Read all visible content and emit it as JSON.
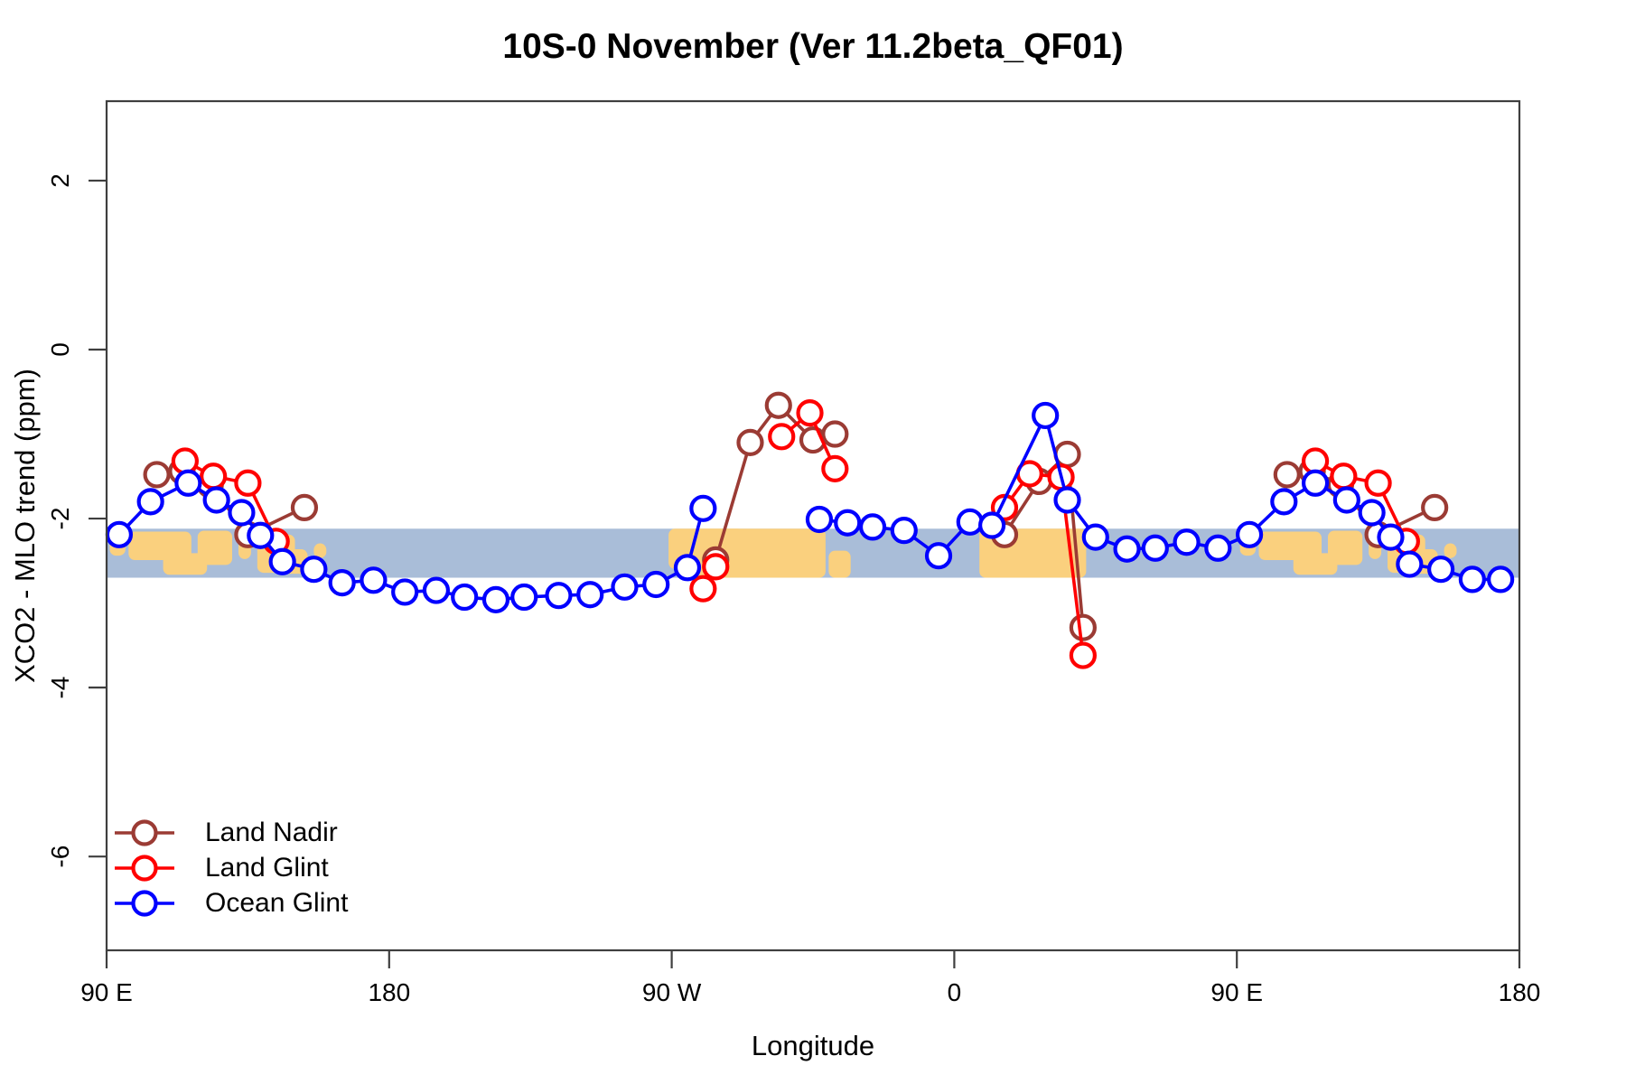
{
  "title": "10S-0 November (Ver 11.2beta_QF01)",
  "axes": {
    "x_label": "Longitude",
    "y_label": "XCO2 - MLO trend (ppm)"
  },
  "legend": [
    {
      "label": "Land Nadir",
      "color": "#9b3b34"
    },
    {
      "label": "Land Glint",
      "color": "#ff0000"
    },
    {
      "label": "Ocean Glint",
      "color": "#0000ff"
    }
  ],
  "chart_data": {
    "type": "line",
    "title": "10S-0 November (Ver 11.2beta_QF01)",
    "xlabel": "Longitude",
    "ylabel": "XCO2 - MLO trend (ppm)",
    "x_axis_note": "x is degrees east of 90E along a wrapped longitude axis spanning 450 degrees",
    "x_range_deg": [
      0,
      450
    ],
    "x_ticks": [
      {
        "deg": 0,
        "label": "90 E"
      },
      {
        "deg": 90,
        "label": "180"
      },
      {
        "deg": 180,
        "label": "90 W"
      },
      {
        "deg": 270,
        "label": "0"
      },
      {
        "deg": 360,
        "label": "90 E"
      },
      {
        "deg": 450,
        "label": "180"
      }
    ],
    "ylim": [
      -7.11,
      2.94
    ],
    "y_ticks": [
      2,
      0,
      -2,
      -4,
      -6
    ],
    "grid": false,
    "legend_position": "bottom-left",
    "map_band": {
      "y_top": -2.12,
      "y_bottom": -2.7,
      "ocean_color": "#a9bdd8",
      "land_color": "#fad07e"
    },
    "land_patches": [
      [
        1,
        6,
        0.15,
        0.4
      ],
      [
        7,
        27,
        0.06,
        0.58
      ],
      [
        18,
        32,
        0.5,
        0.44
      ],
      [
        29,
        40,
        0.04,
        0.7
      ],
      [
        42,
        46,
        0.22,
        0.4
      ],
      [
        48,
        60,
        0.12,
        0.78
      ],
      [
        55,
        64,
        0.42,
        0.5
      ],
      [
        66,
        70,
        0.3,
        0.3
      ],
      [
        179,
        203,
        0.0,
        0.82
      ],
      [
        185,
        229,
        0.0,
        1.0
      ],
      [
        230,
        237,
        0.45,
        0.55
      ],
      [
        278,
        312,
        0.0,
        1.0
      ],
      [
        361,
        366,
        0.15,
        0.4
      ],
      [
        367,
        387,
        0.06,
        0.58
      ],
      [
        378,
        392,
        0.5,
        0.44
      ],
      [
        389,
        400,
        0.04,
        0.7
      ],
      [
        402,
        406,
        0.22,
        0.4
      ],
      [
        408,
        420,
        0.12,
        0.78
      ],
      [
        415,
        424,
        0.42,
        0.5
      ],
      [
        426,
        430,
        0.3,
        0.3
      ]
    ],
    "series": [
      {
        "name": "Land Nadir",
        "color": "#9b3b34",
        "segments": [
          [
            [
              16,
              -1.48
            ],
            [
              24,
              -1.44
            ],
            [
              33,
              -1.6
            ],
            [
              45,
              -2.19
            ],
            [
              63,
              -1.87
            ]
          ],
          [
            [
              194,
              -2.49
            ],
            [
              205,
              -1.1
            ],
            [
              214,
              -0.66
            ],
            [
              225,
              -1.07
            ],
            [
              232,
              -1.0
            ]
          ],
          [
            [
              286,
              -2.19
            ],
            [
              297,
              -1.56
            ],
            [
              306,
              -1.24
            ],
            [
              311,
              -3.29
            ]
          ],
          [
            [
              376,
              -1.48
            ],
            [
              384,
              -1.44
            ],
            [
              393,
              -1.6
            ],
            [
              405,
              -2.19
            ],
            [
              423,
              -1.87
            ]
          ]
        ]
      },
      {
        "name": "Land Glint",
        "color": "#ff0000",
        "segments": [
          [
            [
              25,
              -1.32
            ],
            [
              34,
              -1.5
            ],
            [
              45,
              -1.58
            ],
            [
              54,
              -2.27
            ]
          ],
          [
            [
              190,
              -2.83
            ],
            [
              194,
              -2.57
            ]
          ],
          [
            [
              215,
              -1.03
            ],
            [
              224,
              -0.75
            ],
            [
              232,
              -1.41
            ]
          ],
          [
            [
              286,
              -1.87
            ],
            [
              294,
              -1.47
            ],
            [
              304,
              -1.51
            ],
            [
              311,
              -3.62
            ]
          ],
          [
            [
              385,
              -1.32
            ],
            [
              394,
              -1.5
            ],
            [
              405,
              -1.58
            ],
            [
              414,
              -2.27
            ]
          ]
        ]
      },
      {
        "name": "Ocean Glint",
        "color": "#0000ff",
        "segments": [
          [
            [
              4,
              -2.19
            ],
            [
              14,
              -1.8
            ],
            [
              26,
              -1.58
            ],
            [
              35,
              -1.78
            ],
            [
              43,
              -1.93
            ],
            [
              49,
              -2.2
            ],
            [
              56,
              -2.51
            ],
            [
              66,
              -2.6
            ],
            [
              75,
              -2.76
            ],
            [
              85,
              -2.73
            ],
            [
              95,
              -2.87
            ],
            [
              105,
              -2.85
            ],
            [
              114,
              -2.93
            ],
            [
              124,
              -2.96
            ],
            [
              133,
              -2.93
            ],
            [
              144,
              -2.91
            ],
            [
              154,
              -2.9
            ],
            [
              165,
              -2.81
            ],
            [
              175,
              -2.78
            ],
            [
              185,
              -2.58
            ],
            [
              190,
              -1.88
            ]
          ],
          [
            [
              227,
              -2.01
            ],
            [
              236,
              -2.05
            ],
            [
              244,
              -2.1
            ],
            [
              254,
              -2.14
            ],
            [
              265,
              -2.44
            ],
            [
              275,
              -2.04
            ],
            [
              282,
              -2.08
            ],
            [
              299,
              -0.78
            ],
            [
              306,
              -1.78
            ],
            [
              315,
              -2.22
            ],
            [
              325,
              -2.36
            ],
            [
              334,
              -2.35
            ],
            [
              344,
              -2.28
            ],
            [
              354,
              -2.35
            ],
            [
              364,
              -2.19
            ],
            [
              375,
              -1.8
            ],
            [
              385,
              -1.58
            ],
            [
              395,
              -1.78
            ],
            [
              403,
              -1.93
            ],
            [
              409,
              -2.22
            ],
            [
              415,
              -2.54
            ],
            [
              425,
              -2.6
            ],
            [
              435,
              -2.72
            ],
            [
              444,
              -2.72
            ]
          ]
        ]
      }
    ],
    "style": {
      "box_color": "#3f3f3f",
      "marker_radius": 13,
      "marker_stroke_width": 4.2,
      "line_width": 3.6
    }
  }
}
